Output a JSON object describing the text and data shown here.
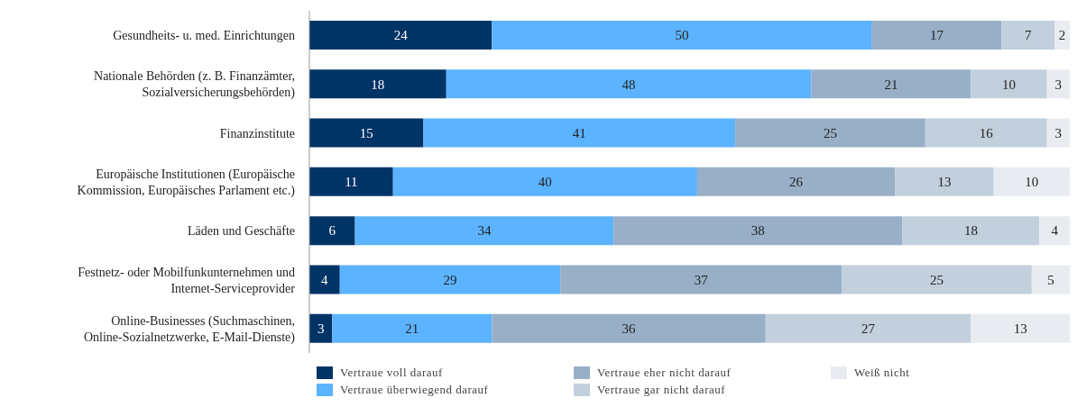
{
  "chart_data": {
    "type": "bar",
    "orientation": "horizontal",
    "stacked": true,
    "data_labels": true,
    "legend": "bottom",
    "tick_labels": "y",
    "xlim": [
      0,
      100
    ],
    "categories": [
      "Gesundheits- u. med. Einrichtungen",
      "Nationale Behörden (z. B. Finanzämter, Sozialversicherungsbehörden)",
      "Finanzinstitute",
      "Europäische Institutionen (Europäische Kommission, Europäisches Parlament etc.)",
      "Läden und Geschäfte",
      "Festnetz- oder Mobilfunkunternehmen und Internet-Serviceprovider",
      "Online-Businesses (Suchmaschinen, Online-Sozialnetzwerke, E-Mail-Dienste)"
    ],
    "series": [
      {
        "name": "Vertraue voll darauf",
        "color": "#003366",
        "values": [
          24,
          18,
          15,
          11,
          6,
          4,
          3
        ]
      },
      {
        "name": "Vertraue überwiegend darauf",
        "color": "#5cb3ff",
        "values": [
          50,
          48,
          41,
          40,
          34,
          29,
          21
        ]
      },
      {
        "name": "Vertraue eher nicht darauf",
        "color": "#98afc7",
        "values": [
          17,
          21,
          25,
          26,
          38,
          37,
          36
        ]
      },
      {
        "name": "Vertraue gar nicht darauf",
        "color": "#c2cfdc",
        "values": [
          7,
          10,
          16,
          13,
          18,
          25,
          27
        ]
      },
      {
        "name": "Weiß nicht",
        "color": "#e8ecf1",
        "values": [
          2,
          3,
          3,
          10,
          4,
          5,
          13
        ]
      }
    ]
  }
}
